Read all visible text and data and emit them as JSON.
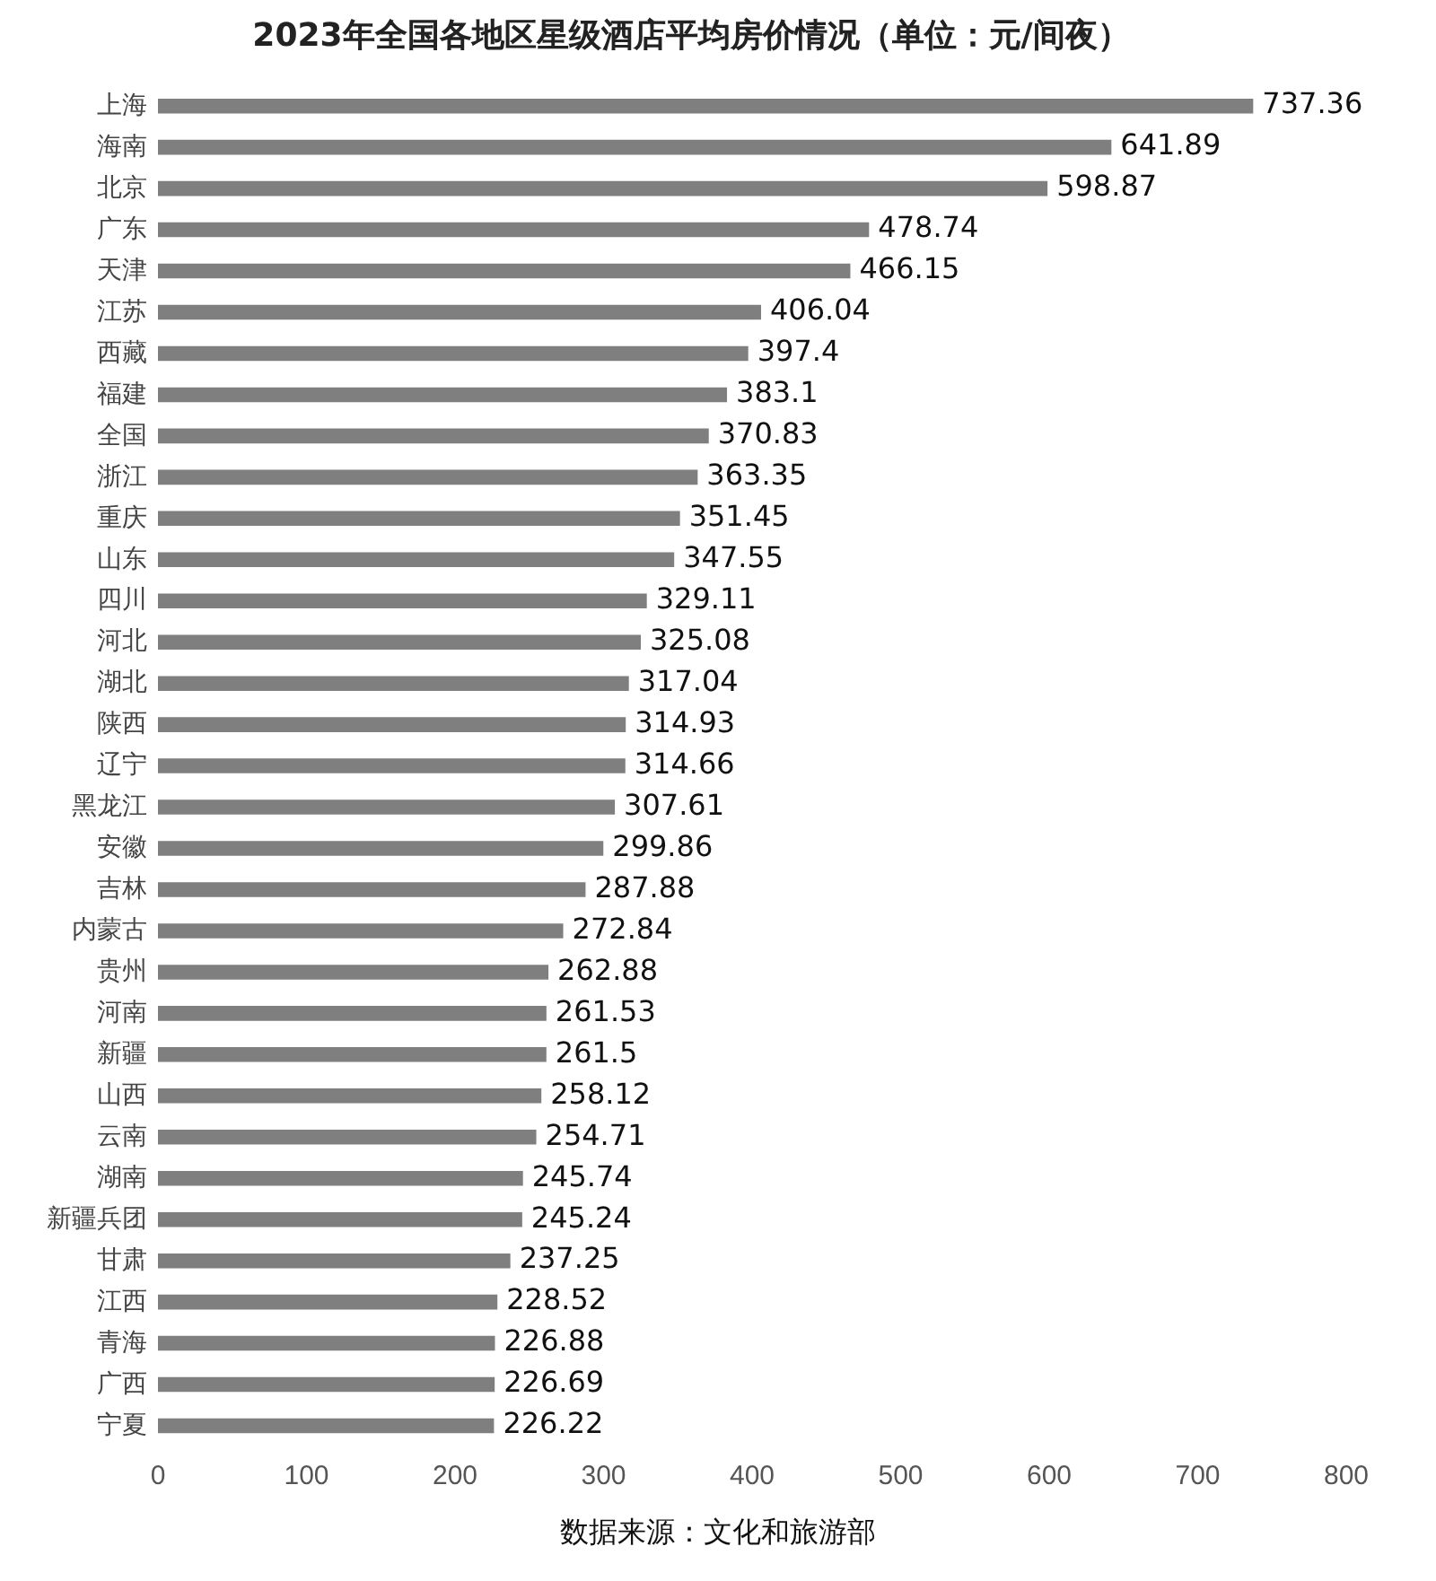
{
  "chart_data": {
    "type": "bar",
    "orientation": "horizontal",
    "title": "2023年全国各地区星级酒店平均房价情况（单位：元/间夜）",
    "categories": [
      "上海",
      "海南",
      "北京",
      "广东",
      "天津",
      "江苏",
      "西藏",
      "福建",
      "全国",
      "浙江",
      "重庆",
      "山东",
      "四川",
      "河北",
      "湖北",
      "陕西",
      "辽宁",
      "黑龙江",
      "安徽",
      "吉林",
      "内蒙古",
      "贵州",
      "河南",
      "新疆",
      "山西",
      "云南",
      "湖南",
      "新疆兵团",
      "甘肃",
      "江西",
      "青海",
      "广西",
      "宁夏"
    ],
    "values": [
      737.36,
      641.89,
      598.87,
      478.74,
      466.15,
      406.04,
      397.4,
      383.1,
      370.83,
      363.35,
      351.45,
      347.55,
      329.11,
      325.08,
      317.04,
      314.93,
      314.66,
      307.61,
      299.86,
      287.88,
      272.84,
      262.88,
      261.53,
      261.5,
      258.12,
      254.71,
      245.74,
      245.24,
      237.25,
      228.52,
      226.88,
      226.69,
      226.22
    ],
    "color": "#7f7f7f",
    "data_labels": true,
    "grid": false,
    "legend": false,
    "xlim": [
      0,
      800
    ],
    "xticks": [
      0,
      100,
      200,
      300,
      400,
      500,
      600,
      700,
      800
    ],
    "annotations": [
      "数据来源：文化和旅游部"
    ]
  }
}
